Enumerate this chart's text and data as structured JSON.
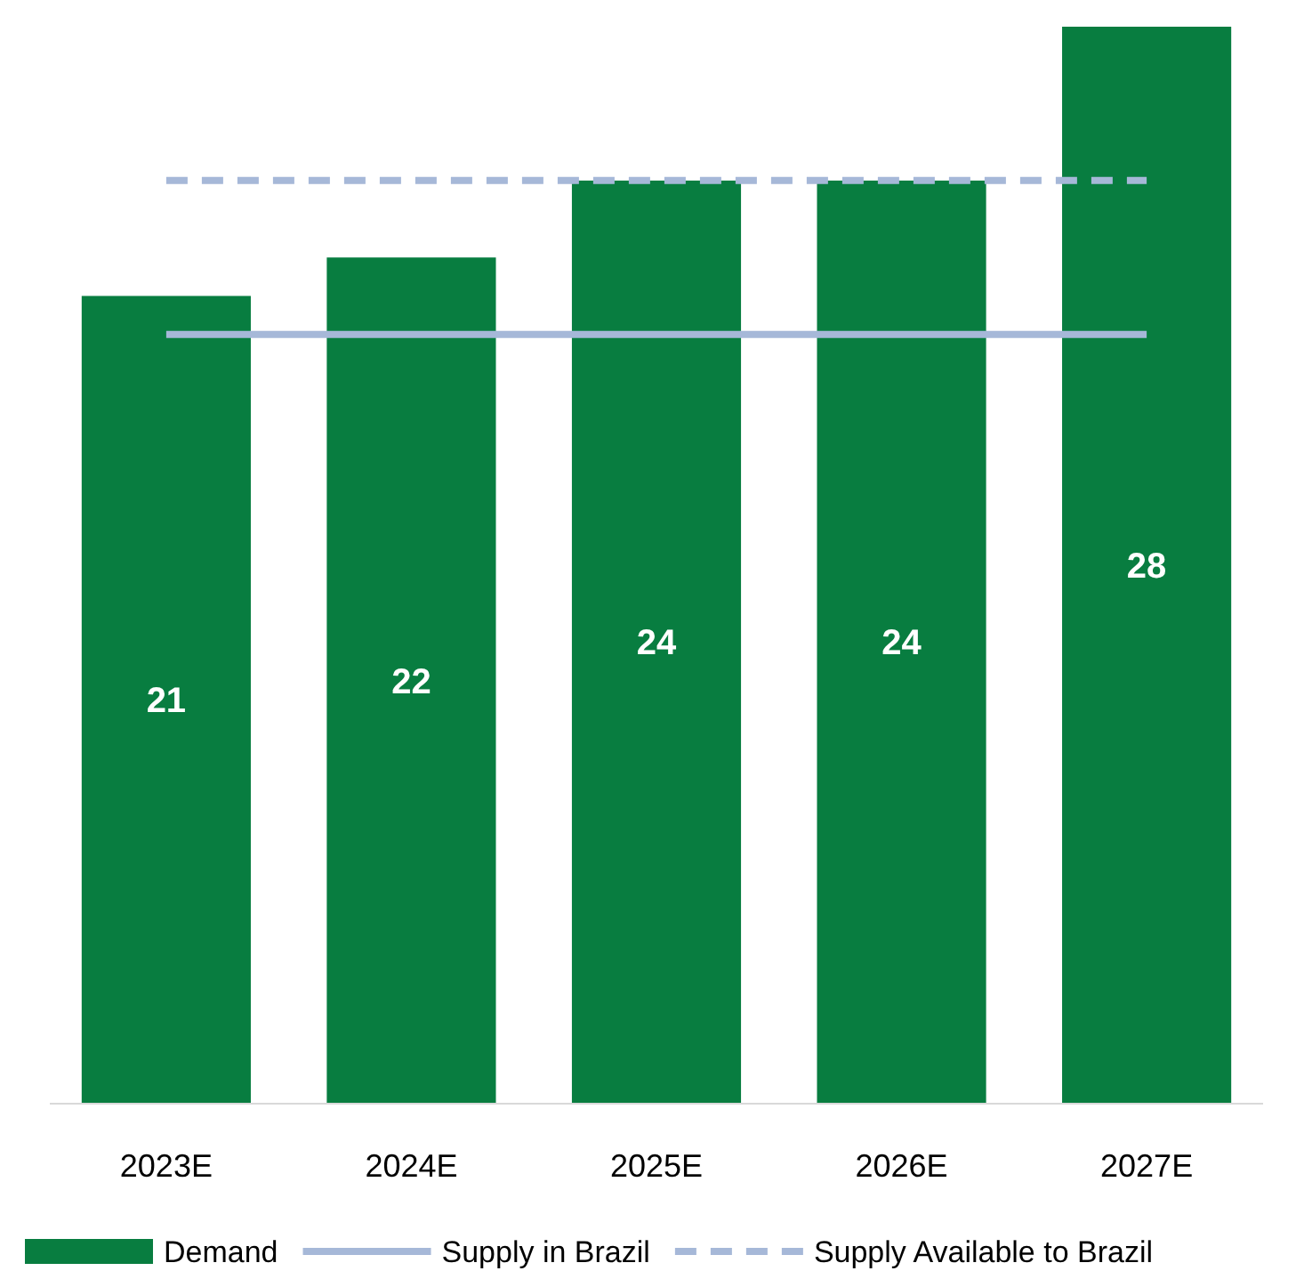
{
  "chart_data": {
    "type": "bar",
    "categories": [
      "2023E",
      "2024E",
      "2025E",
      "2026E",
      "2027E"
    ],
    "ylim": [
      0,
      28
    ],
    "legend": "bottom",
    "series": [
      {
        "name": "Demand",
        "color": "#087d40",
        "values": [
          21,
          22,
          24,
          24,
          28
        ],
        "value_labels": [
          "21",
          "22",
          "24",
          "24",
          "28"
        ]
      },
      {
        "name": "Supply in Brazil",
        "type": "line",
        "color": "#a6b8d8",
        "line_style": "solid",
        "values": [
          20,
          20,
          20,
          20,
          20
        ]
      },
      {
        "name": "Supply Available to Brazil",
        "type": "line",
        "color": "#a6b8d8",
        "line_style": "dashed",
        "values": [
          24,
          24,
          24,
          24,
          24
        ]
      }
    ]
  }
}
